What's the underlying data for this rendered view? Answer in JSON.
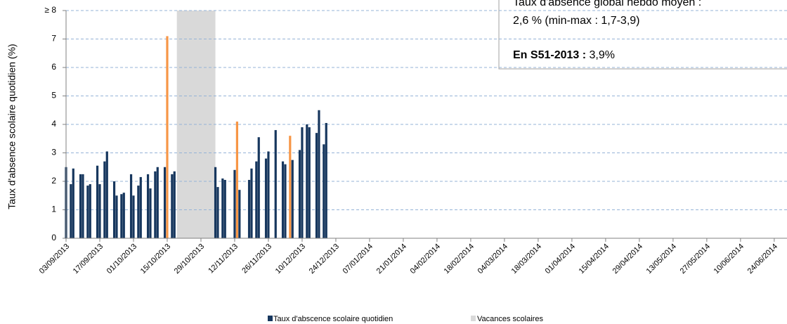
{
  "chart_data": {
    "type": "bar",
    "y_label": "Taux d'absence scolaire quotidien (%)",
    "ylim": [
      0,
      8
    ],
    "yticks": [
      0,
      1,
      2,
      3,
      4,
      5,
      6,
      7,
      {
        "value": 8,
        "label": "≥ 8"
      }
    ],
    "xlim": [
      "03/09/2013",
      "29/06/2014"
    ],
    "xticks": [
      "03/09/2013",
      "17/09/2013",
      "01/10/2013",
      "15/10/2013",
      "29/10/2013",
      "12/11/2013",
      "26/11/2013",
      "10/12/2013",
      "24/12/2013",
      "07/01/2014",
      "21/01/2014",
      "04/02/2014",
      "18/02/2014",
      "04/03/2014",
      "18/03/2014",
      "01/04/2014",
      "15/04/2014",
      "29/04/2014",
      "13/05/2014",
      "27/05/2014",
      "10/06/2014",
      "24/06/2014"
    ],
    "grid": true,
    "series": [
      {
        "name": "Taux d'abscence scolaire quotidien",
        "color": "#17375e",
        "x": [
          "03/09/2013",
          "05/09/2013",
          "06/09/2013",
          "09/09/2013",
          "10/09/2013",
          "12/09/2013",
          "13/09/2013",
          "16/09/2013",
          "17/09/2013",
          "19/09/2013",
          "20/09/2013",
          "23/09/2013",
          "24/09/2013",
          "26/09/2013",
          "27/09/2013",
          "30/09/2013",
          "01/10/2013",
          "03/10/2013",
          "04/10/2013",
          "07/10/2013",
          "08/10/2013",
          "10/10/2013",
          "11/10/2013",
          "14/10/2013",
          "17/10/2013",
          "18/10/2013",
          "04/11/2013",
          "05/11/2013",
          "07/11/2013",
          "08/11/2013",
          "12/11/2013",
          "14/11/2013",
          "18/11/2013",
          "19/11/2013",
          "21/11/2013",
          "22/11/2013",
          "25/11/2013",
          "26/11/2013",
          "29/11/2013",
          "02/12/2013",
          "03/12/2013",
          "06/12/2013",
          "09/12/2013",
          "10/12/2013",
          "12/12/2013",
          "13/12/2013",
          "16/12/2013",
          "17/12/2013",
          "19/12/2013",
          "20/12/2013"
        ],
        "values": [
          2.5,
          1.9,
          2.45,
          2.25,
          2.25,
          1.85,
          1.9,
          2.55,
          1.9,
          2.7,
          3.05,
          2.0,
          1.5,
          1.55,
          1.6,
          2.25,
          1.5,
          1.85,
          2.15,
          2.25,
          1.75,
          2.35,
          2.5,
          2.5,
          2.25,
          2.35,
          2.5,
          1.8,
          2.1,
          2.05,
          2.4,
          1.7,
          2.05,
          2.45,
          2.7,
          3.55,
          2.8,
          3.05,
          3.8,
          2.7,
          2.6,
          2.75,
          3.1,
          3.9,
          4.0,
          3.9,
          3.7,
          4.5,
          3.3,
          4.05
        ]
      },
      {
        "color": "#f79646",
        "x": [
          "15/10/2013",
          "13/11/2013",
          "05/12/2013"
        ],
        "values": [
          7.1,
          4.1,
          3.6
        ]
      }
    ],
    "shaded_periods": [
      {
        "name": "Vacances scolaires",
        "color": "#d9d9d9",
        "start": "19/10/2013",
        "end": "03/11/2013"
      }
    ],
    "annotation": {
      "line1": "Taux d'absence global hebdo moyen :",
      "line2": "2,6 % (min-max : 1,7-3,9)",
      "label": "En S51-2013 :",
      "value": "3,9%"
    }
  }
}
